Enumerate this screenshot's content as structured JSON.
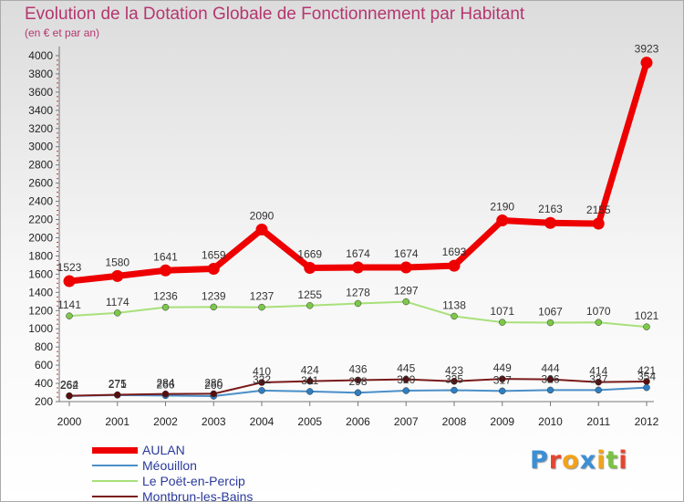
{
  "chart_data": {
    "type": "line",
    "title": "Evolution de la Dotation Globale de Fonctionnement par Habitant",
    "subtitle": "(en € et par an)",
    "x": [
      "2000",
      "2001",
      "2002",
      "2003",
      "2004",
      "2005",
      "2006",
      "2007",
      "2008",
      "2009",
      "2010",
      "2011",
      "2012"
    ],
    "ylim": [
      200,
      4000
    ],
    "yticks": [
      200,
      400,
      600,
      800,
      1000,
      1200,
      1400,
      1600,
      1800,
      2000,
      2200,
      2400,
      2600,
      2800,
      3000,
      3200,
      3400,
      3600,
      3800,
      4000
    ],
    "grid": false,
    "series": [
      {
        "name": "Méouillon",
        "color": "#4a8fc8",
        "marker": "#2f7ec1",
        "width": 2,
        "values": [
          262,
          271,
          266,
          260,
          322,
          311,
          298,
          320,
          325,
          317,
          326,
          327,
          354
        ],
        "labels": [
          "262",
          "271",
          "266",
          "260",
          "322",
          "311",
          "298",
          "320",
          "325",
          "317",
          "326",
          "327",
          "354"
        ]
      },
      {
        "name": "Montbrun-les-Bains",
        "color": "#7a1a1a",
        "marker": "#5a0d0d",
        "width": 2,
        "values": [
          264,
          275,
          284,
          286,
          410,
          424,
          436,
          445,
          423,
          449,
          444,
          414,
          421
        ],
        "labels": [
          "264",
          "275",
          "284",
          "286",
          "410",
          "424",
          "436",
          "445",
          "423",
          "449",
          "444",
          "414",
          "421"
        ]
      },
      {
        "name": "Le Poët-en-Percip",
        "color": "#a8e07a",
        "marker": "#7cc84a",
        "width": 2,
        "values": [
          1141,
          1174,
          1236,
          1239,
          1237,
          1255,
          1278,
          1297,
          1138,
          1071,
          1067,
          1070,
          1021
        ],
        "labels": [
          "1141",
          "1174",
          "1236",
          "1239",
          "1237",
          "1255",
          "1278",
          "1297",
          "1138",
          "1071",
          "1067",
          "1070",
          "1021"
        ]
      },
      {
        "name": "AULAN",
        "color": "#ee0000",
        "marker": "#ee0000",
        "width": 7,
        "values": [
          1523,
          1580,
          1641,
          1659,
          2090,
          1669,
          1674,
          1674,
          1693,
          2190,
          2163,
          2155,
          3923
        ],
        "labels": [
          "1523",
          "1580",
          "1641",
          "1659",
          "2090",
          "1669",
          "1674",
          "1674",
          "1693",
          "2190",
          "2163",
          "2155",
          "3923"
        ]
      }
    ]
  },
  "legend": [
    {
      "label": "AULAN",
      "color": "#ee0000",
      "thickness": 7
    },
    {
      "label": "Méouillon",
      "color": "#4a8fc8",
      "thickness": 2
    },
    {
      "label": "Le Poët-en-Percip",
      "color": "#a8e07a",
      "thickness": 2
    },
    {
      "label": "Montbrun-les-Bains",
      "color": "#7a1a1a",
      "thickness": 2
    }
  ],
  "logo": {
    "letters": [
      "P",
      "r",
      "o",
      "x",
      "i",
      "t",
      "i"
    ],
    "colors": [
      "#3a8fd6",
      "#e5462e",
      "#f2a31b",
      "#3a8fd6",
      "#f2a31b",
      "#7cc242",
      "#e5462e"
    ]
  }
}
